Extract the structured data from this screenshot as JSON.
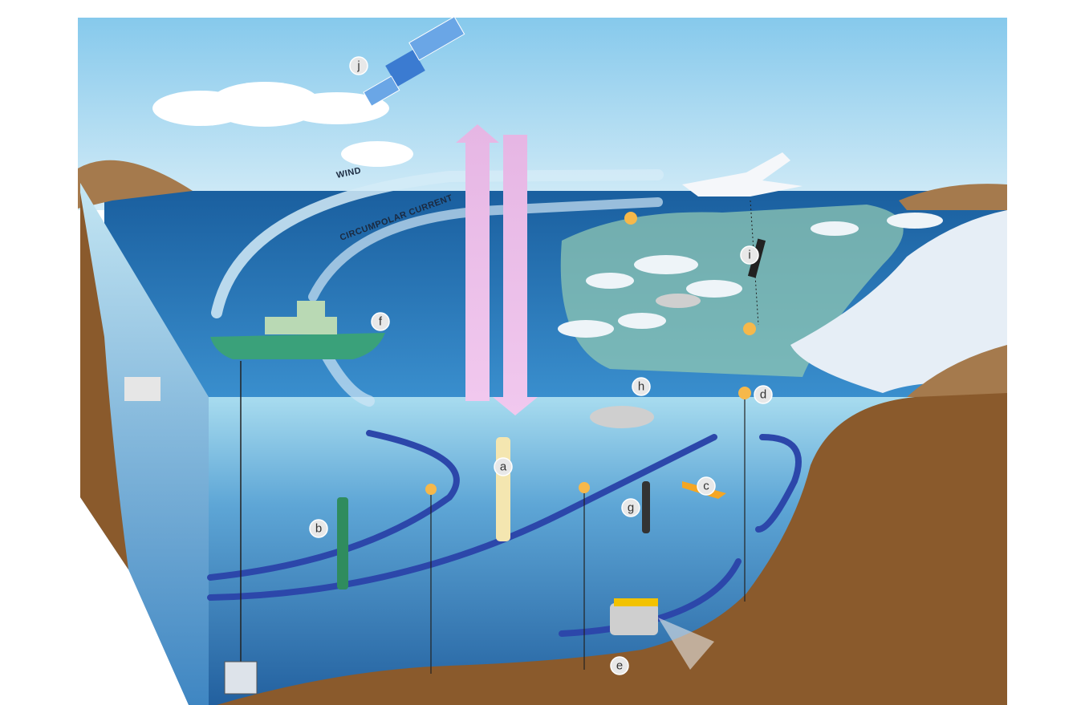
{
  "annotations": {
    "wind": "WIND",
    "current": "CIRCUMPOLAR CURRENT"
  },
  "markers": [
    "a",
    "b",
    "c",
    "d",
    "e",
    "f",
    "g",
    "h",
    "i",
    "j"
  ]
}
